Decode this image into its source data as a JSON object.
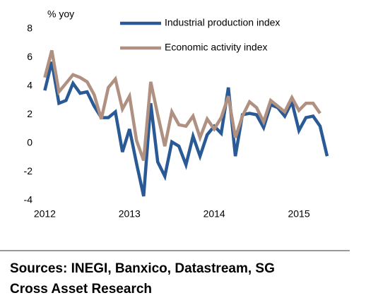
{
  "chart_data": {
    "type": "line",
    "y_label": "% yoy",
    "x": [
      2012,
      2012.083,
      2012.167,
      2012.25,
      2012.333,
      2012.417,
      2012.5,
      2012.583,
      2012.667,
      2012.75,
      2012.833,
      2012.917,
      2013,
      2013.083,
      2013.167,
      2013.25,
      2013.333,
      2013.417,
      2013.5,
      2013.583,
      2013.667,
      2013.75,
      2013.833,
      2013.917,
      2014,
      2014.083,
      2014.167,
      2014.25,
      2014.333,
      2014.417,
      2014.5,
      2014.583,
      2014.667,
      2014.75,
      2014.833,
      2014.917,
      2015,
      2015.083,
      2015.167,
      2015.25,
      2015.333
    ],
    "series": [
      {
        "name": "Industrial production index",
        "color": "#2a5a96",
        "values": [
          3.7,
          5.7,
          2.8,
          3.0,
          4.2,
          3.5,
          3.6,
          2.6,
          1.8,
          1.8,
          2.2,
          -0.6,
          1.0,
          -1.4,
          -3.7,
          2.8,
          -1.3,
          -2.3,
          0.1,
          -0.2,
          -1.5,
          0.5,
          -0.9,
          0.6,
          1.2,
          0.7,
          3.9,
          -0.9,
          2.0,
          2.1,
          2.0,
          1.1,
          2.7,
          2.5,
          1.9,
          2.9,
          0.9,
          1.8,
          1.9,
          1.2,
          -0.9
        ]
      },
      {
        "name": "Economic activity index",
        "color": "#b09080",
        "values": [
          4.6,
          6.5,
          3.6,
          4.2,
          4.8,
          4.6,
          4.3,
          3.4,
          1.7,
          3.9,
          4.5,
          2.4,
          3.3,
          0.2,
          -1.2,
          4.3,
          2.0,
          -0.2,
          2.2,
          1.3,
          1.2,
          1.9,
          0.4,
          1.7,
          1.0,
          1.8,
          3.3,
          0.4,
          1.9,
          2.9,
          2.5,
          1.5,
          3.0,
          2.6,
          2.2,
          3.2,
          2.3,
          2.8,
          2.8,
          2.1,
          null
        ]
      }
    ],
    "xlim": [
      2011.93,
      2015.5
    ],
    "xticks": [
      2012,
      2013,
      2014,
      2015
    ],
    "ylim": [
      -4,
      8
    ],
    "yticks": [
      -4,
      -2,
      0,
      2,
      4,
      6,
      8
    ],
    "grid": false,
    "source": [
      "Sources: INEGI, Banxico, Datastream, SG",
      "Cross Asset Research"
    ]
  }
}
